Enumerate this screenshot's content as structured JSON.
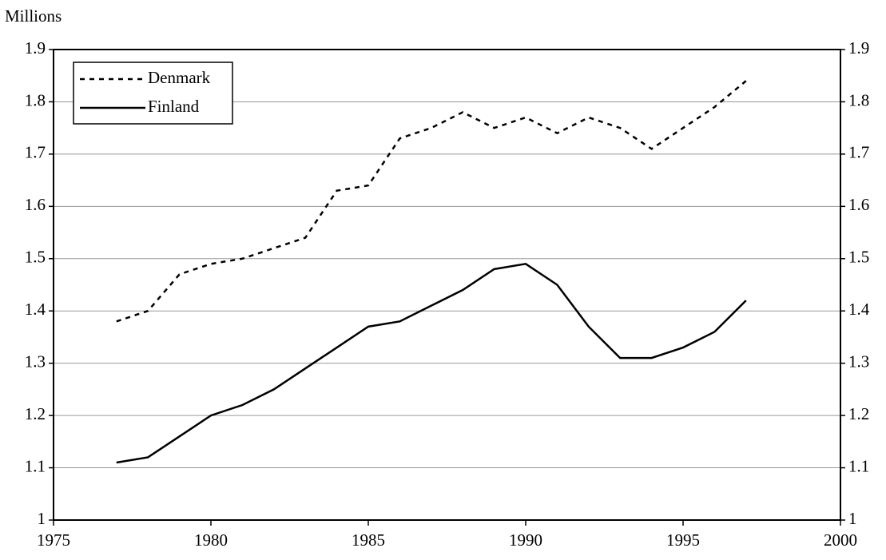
{
  "chart_data": {
    "type": "line",
    "y_unit_label": "Millions",
    "x": [
      1977,
      1978,
      1979,
      1980,
      1981,
      1982,
      1983,
      1984,
      1985,
      1986,
      1987,
      1988,
      1989,
      1990,
      1991,
      1992,
      1993,
      1994,
      1995,
      1996,
      1997
    ],
    "series": [
      {
        "name": "Denmark",
        "color": "#000000",
        "line_style": "dashed",
        "values": [
          1.38,
          1.4,
          1.47,
          1.49,
          1.5,
          1.52,
          1.54,
          1.63,
          1.64,
          1.73,
          1.75,
          1.78,
          1.75,
          1.77,
          1.74,
          1.77,
          1.75,
          1.71,
          1.75,
          1.79,
          1.84
        ]
      },
      {
        "name": "Finland",
        "color": "#000000",
        "line_style": "solid",
        "values": [
          1.11,
          1.12,
          1.16,
          1.2,
          1.22,
          1.25,
          1.29,
          1.33,
          1.37,
          1.38,
          1.41,
          1.44,
          1.48,
          1.49,
          1.45,
          1.37,
          1.31,
          1.31,
          1.33,
          1.36,
          1.42
        ]
      }
    ],
    "xlim": [
      1975,
      2000
    ],
    "xticks": [
      1975,
      1980,
      1985,
      1990,
      1995,
      2000
    ],
    "ylim": [
      1,
      1.9
    ],
    "yticks": [
      1,
      1.1,
      1.2,
      1.3,
      1.4,
      1.5,
      1.6,
      1.7,
      1.8,
      1.9
    ],
    "y2lim": [
      1,
      1.9
    ],
    "y2ticks": [
      1,
      1.1,
      1.2,
      1.3,
      1.4,
      1.5,
      1.6,
      1.7,
      1.8,
      1.9
    ],
    "grid": true,
    "legend": "upper left"
  }
}
